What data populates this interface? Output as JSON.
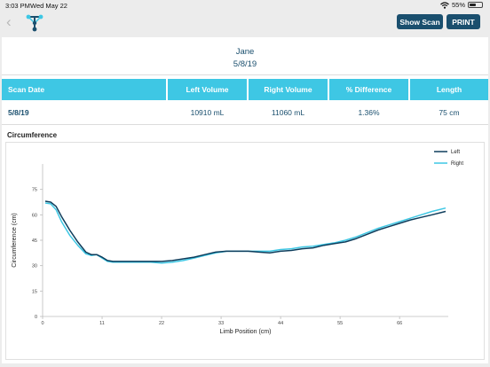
{
  "status": {
    "time": "3:03 PM",
    "date": "Wed May 22",
    "battery": "55%",
    "battery_level": 0.55
  },
  "nav": {
    "back_icon": "chevron-left-icon",
    "logo_icon": "app-logo-icon",
    "show_scan_label": "Show Scan",
    "print_label": "PRINT"
  },
  "patient": {
    "name": "Jane",
    "date": "5/8/19"
  },
  "table": {
    "headers": [
      "Scan Date",
      "Left Volume",
      "Right Volume",
      "% Difference",
      "Length"
    ],
    "rows": [
      [
        "5/8/19",
        "10910 mL",
        "11060 mL",
        "1.36%",
        "75 cm"
      ]
    ]
  },
  "section_title": "Circumference",
  "colors": {
    "header_bg": "#3ec7e4",
    "button_bg": "#1a4f6e",
    "left_series": "#0d3d5c",
    "right_series": "#3ec7e4"
  },
  "chart_data": {
    "type": "line",
    "title": "",
    "xlabel": "Limb Position (cm)",
    "ylabel": "Circumference (cm)",
    "xlim": [
      0,
      75
    ],
    "ylim": [
      0,
      90
    ],
    "xticks": [
      0,
      11,
      22,
      33,
      44,
      55,
      66
    ],
    "yticks": [
      0,
      15,
      30,
      45,
      60,
      75
    ],
    "legend_position": "top-right",
    "grid": false,
    "series": [
      {
        "name": "Left",
        "x": [
          0.5,
          1.5,
          2.5,
          3.5,
          5,
          6.5,
          8,
          9,
          10,
          11,
          12,
          13,
          14.5,
          16,
          18,
          20,
          22,
          24,
          26,
          28,
          30,
          32,
          34,
          36,
          38,
          40,
          42,
          44,
          46,
          48,
          50,
          52,
          54,
          56,
          58,
          60,
          62,
          64,
          66,
          68,
          70,
          72,
          74.5
        ],
        "y": [
          68,
          67.5,
          65,
          59,
          51,
          44,
          38,
          36.5,
          36.5,
          35,
          33,
          32.5,
          32.5,
          32.5,
          32.5,
          32.5,
          32.5,
          33,
          34,
          35,
          36.5,
          38,
          38.5,
          38.5,
          38.5,
          38,
          37.5,
          38.5,
          39,
          40,
          40.5,
          42,
          43,
          44,
          46,
          48.5,
          51,
          53,
          55,
          57,
          58.5,
          60,
          62
        ]
      },
      {
        "name": "Right",
        "x": [
          0.5,
          1.5,
          2.5,
          3.5,
          5,
          6.5,
          8,
          9,
          10,
          11,
          12,
          13,
          14.5,
          16,
          18,
          20,
          22,
          24,
          26,
          28,
          30,
          32,
          34,
          36,
          38,
          40,
          42,
          44,
          46,
          48,
          50,
          52,
          54,
          56,
          58,
          60,
          62,
          64,
          66,
          68,
          70,
          72,
          74.5
        ],
        "y": [
          67,
          66.5,
          63,
          56,
          48,
          42,
          37,
          36,
          36.5,
          34.5,
          32.5,
          32,
          32,
          32,
          32,
          32,
          31.5,
          32,
          33,
          34.5,
          36,
          37.5,
          38.5,
          38.5,
          38.5,
          38.5,
          38.5,
          39.5,
          40,
          41,
          41.5,
          42.5,
          43.5,
          45,
          47,
          49.5,
          52,
          54,
          56,
          58,
          60,
          62,
          64
        ]
      }
    ]
  }
}
